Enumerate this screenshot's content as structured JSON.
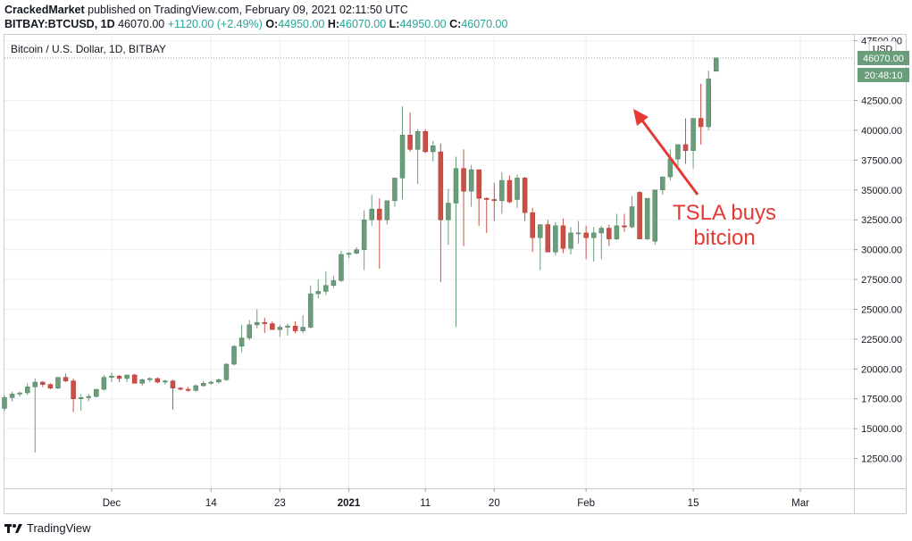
{
  "header": {
    "author": "CrackedMarket",
    "published_text": "published on TradingView.com, February 09, 2021 02:11:50 UTC",
    "symbol": "BITBAY:BTCUSD, 1D",
    "last": "46070.00",
    "change": "+1120.00 (+2.49%)",
    "o_label": "O:",
    "o_val": "44950.00",
    "h_label": "H:",
    "h_val": "46070.00",
    "l_label": "L:",
    "l_val": "44950.00",
    "c_label": "C:",
    "c_val": "46070.00"
  },
  "footer": {
    "brand": "TradingView",
    "logo_icon": "tradingview-logo-icon"
  },
  "colors": {
    "up": "#6a9e7a",
    "down": "#cc4f46",
    "grid": "#eceef2",
    "annotation": "#e53935",
    "price_tag": "#6a9e7a"
  },
  "chart_data": {
    "type": "candlestick",
    "title": "Bitcoin / U.S. Dollar, 1D, BITBAY",
    "currency": "USD",
    "price_tag": "46070.00",
    "countdown": "20:48:10",
    "ylim": [
      10000,
      48000
    ],
    "y_ticks": [
      12500,
      15000,
      17500,
      20000,
      22500,
      25000,
      27500,
      30000,
      32500,
      35000,
      37500,
      40000,
      42500,
      47500
    ],
    "y_tick_labels": [
      "12500.00",
      "15000.00",
      "17500.00",
      "20000.00",
      "22500.00",
      "25000.00",
      "27500.00",
      "30000.00",
      "32500.00",
      "35000.00",
      "37500.00",
      "40000.00",
      "42500.00",
      "47500.00"
    ],
    "x_range": [
      "2020-11-17",
      "2021-03-08"
    ],
    "x_ticks": [
      {
        "date": "2020-12-01",
        "label": "Dec",
        "bold": false
      },
      {
        "date": "2020-12-14",
        "label": "14",
        "bold": false
      },
      {
        "date": "2020-12-23",
        "label": "23",
        "bold": false
      },
      {
        "date": "2021-01-01",
        "label": "2021",
        "bold": true
      },
      {
        "date": "2021-01-11",
        "label": "11",
        "bold": false
      },
      {
        "date": "2021-01-20",
        "label": "20",
        "bold": false
      },
      {
        "date": "2021-02-01",
        "label": "Feb",
        "bold": false
      },
      {
        "date": "2021-02-15",
        "label": "15",
        "bold": false
      },
      {
        "date": "2021-03-01",
        "label": "Mar",
        "bold": false
      }
    ],
    "ohlc_fields": [
      "open",
      "high",
      "low",
      "close"
    ],
    "first_date": "2020-11-17",
    "ohlc": [
      [
        16700,
        17800,
        16500,
        17600
      ],
      [
        17600,
        18100,
        17300,
        17900
      ],
      [
        17900,
        18100,
        17700,
        18000
      ],
      [
        18000,
        18800,
        17800,
        18500
      ],
      [
        18500,
        19200,
        13000,
        18900
      ],
      [
        18900,
        19000,
        18500,
        18700
      ],
      [
        18700,
        18800,
        18300,
        18400
      ],
      [
        18400,
        19300,
        18300,
        19300
      ],
      [
        19300,
        19600,
        18900,
        19000
      ],
      [
        19000,
        19200,
        16400,
        17500
      ],
      [
        17500,
        17900,
        16500,
        17600
      ],
      [
        17600,
        17900,
        17300,
        17700
      ],
      [
        17700,
        18300,
        17600,
        18300
      ],
      [
        18300,
        19500,
        18200,
        19300
      ],
      [
        19300,
        19700,
        18900,
        19400
      ],
      [
        19400,
        19500,
        18900,
        19200
      ],
      [
        19200,
        19500,
        18900,
        19500
      ],
      [
        19500,
        19600,
        18800,
        18800
      ],
      [
        18800,
        19200,
        18600,
        19100
      ],
      [
        19100,
        19300,
        18900,
        19200
      ],
      [
        19200,
        19300,
        18800,
        18900
      ],
      [
        18900,
        19100,
        18700,
        19000
      ],
      [
        19000,
        19100,
        16600,
        18400
      ],
      [
        18400,
        18500,
        18200,
        18300
      ],
      [
        18300,
        18500,
        18100,
        18200
      ],
      [
        18200,
        18700,
        18100,
        18600
      ],
      [
        18600,
        19000,
        18500,
        18800
      ],
      [
        18800,
        19000,
        18700,
        18900
      ],
      [
        18900,
        19200,
        18800,
        19100
      ],
      [
        19100,
        20500,
        19000,
        20400
      ],
      [
        20400,
        22000,
        20300,
        21900
      ],
      [
        21900,
        23700,
        21400,
        22600
      ],
      [
        22600,
        24100,
        22400,
        23700
      ],
      [
        23700,
        25000,
        23400,
        23900
      ],
      [
        23900,
        24300,
        23000,
        23800
      ],
      [
        23800,
        24000,
        23400,
        23300
      ],
      [
        23300,
        23700,
        22700,
        23500
      ],
      [
        23500,
        23800,
        22800,
        23600
      ],
      [
        23600,
        24000,
        23000,
        23200
      ],
      [
        23200,
        24500,
        23000,
        23500
      ],
      [
        23500,
        27000,
        23400,
        26300
      ],
      [
        26300,
        27500,
        25900,
        26500
      ],
      [
        26500,
        28200,
        26200,
        27000
      ],
      [
        27000,
        27800,
        26800,
        27400
      ],
      [
        27400,
        29900,
        27300,
        29600
      ],
      [
        29600,
        29800,
        29300,
        29700
      ],
      [
        29700,
        30200,
        29600,
        30000
      ],
      [
        30000,
        33300,
        28300,
        32500
      ],
      [
        32500,
        34600,
        32000,
        33400
      ],
      [
        33400,
        34300,
        28400,
        32500
      ],
      [
        32500,
        34000,
        32100,
        34100
      ],
      [
        34100,
        35800,
        33600,
        36000
      ],
      [
        36000,
        42000,
        34200,
        39600
      ],
      [
        39600,
        41500,
        38200,
        38400
      ],
      [
        38400,
        40100,
        35500,
        39900
      ],
      [
        39900,
        40100,
        38100,
        38200
      ],
      [
        38200,
        39100,
        37400,
        38700
      ],
      [
        38200,
        38900,
        27300,
        32500
      ],
      [
        32500,
        35100,
        30400,
        33900
      ],
      [
        33900,
        37800,
        23500,
        36800
      ],
      [
        36800,
        38400,
        30300,
        34900
      ],
      [
        34900,
        37100,
        33600,
        36700
      ],
      [
        36700,
        36700,
        32000,
        34300
      ],
      [
        34300,
        34400,
        31400,
        34200
      ],
      [
        34200,
        35600,
        32400,
        34100
      ],
      [
        34100,
        36500,
        33000,
        35800
      ],
      [
        35800,
        36200,
        33900,
        34000
      ],
      [
        34200,
        36300,
        33500,
        36000
      ],
      [
        36000,
        36100,
        32400,
        33100
      ],
      [
        33100,
        33500,
        29800,
        31000
      ],
      [
        31000,
        32100,
        28300,
        32100
      ],
      [
        32100,
        32500,
        30000,
        29800
      ],
      [
        29800,
        32300,
        29500,
        32000
      ],
      [
        32000,
        32600,
        29700,
        30100
      ],
      [
        30100,
        31900,
        29600,
        31400
      ],
      [
        31400,
        32400,
        30500,
        31400
      ],
      [
        31400,
        32000,
        29200,
        31000
      ],
      [
        31000,
        31900,
        29000,
        31400
      ],
      [
        31400,
        32000,
        29200,
        31800
      ],
      [
        31800,
        32100,
        30300,
        30900
      ],
      [
        30900,
        33000,
        30800,
        32000
      ],
      [
        32000,
        33000,
        31500,
        31900
      ],
      [
        31900,
        34500,
        31800,
        33600
      ],
      [
        34800,
        34900,
        31000,
        30900
      ],
      [
        30900,
        34000,
        30800,
        34300
      ],
      [
        30700,
        35000,
        30400,
        35000
      ],
      [
        35000,
        36000,
        34600,
        36100
      ],
      [
        36100,
        38400,
        35800,
        37600
      ],
      [
        37600,
        38600,
        37000,
        38800
      ],
      [
        38800,
        41000,
        37200,
        38300
      ],
      [
        38300,
        40900,
        36800,
        41000
      ],
      [
        41000,
        43900,
        38800,
        40300
      ],
      [
        40300,
        45000,
        40000,
        44300
      ],
      [
        44950,
        46070,
        44950,
        46070
      ]
    ],
    "annotation": {
      "text_line1": "TSLA buys",
      "text_line2": "bitcion"
    }
  }
}
